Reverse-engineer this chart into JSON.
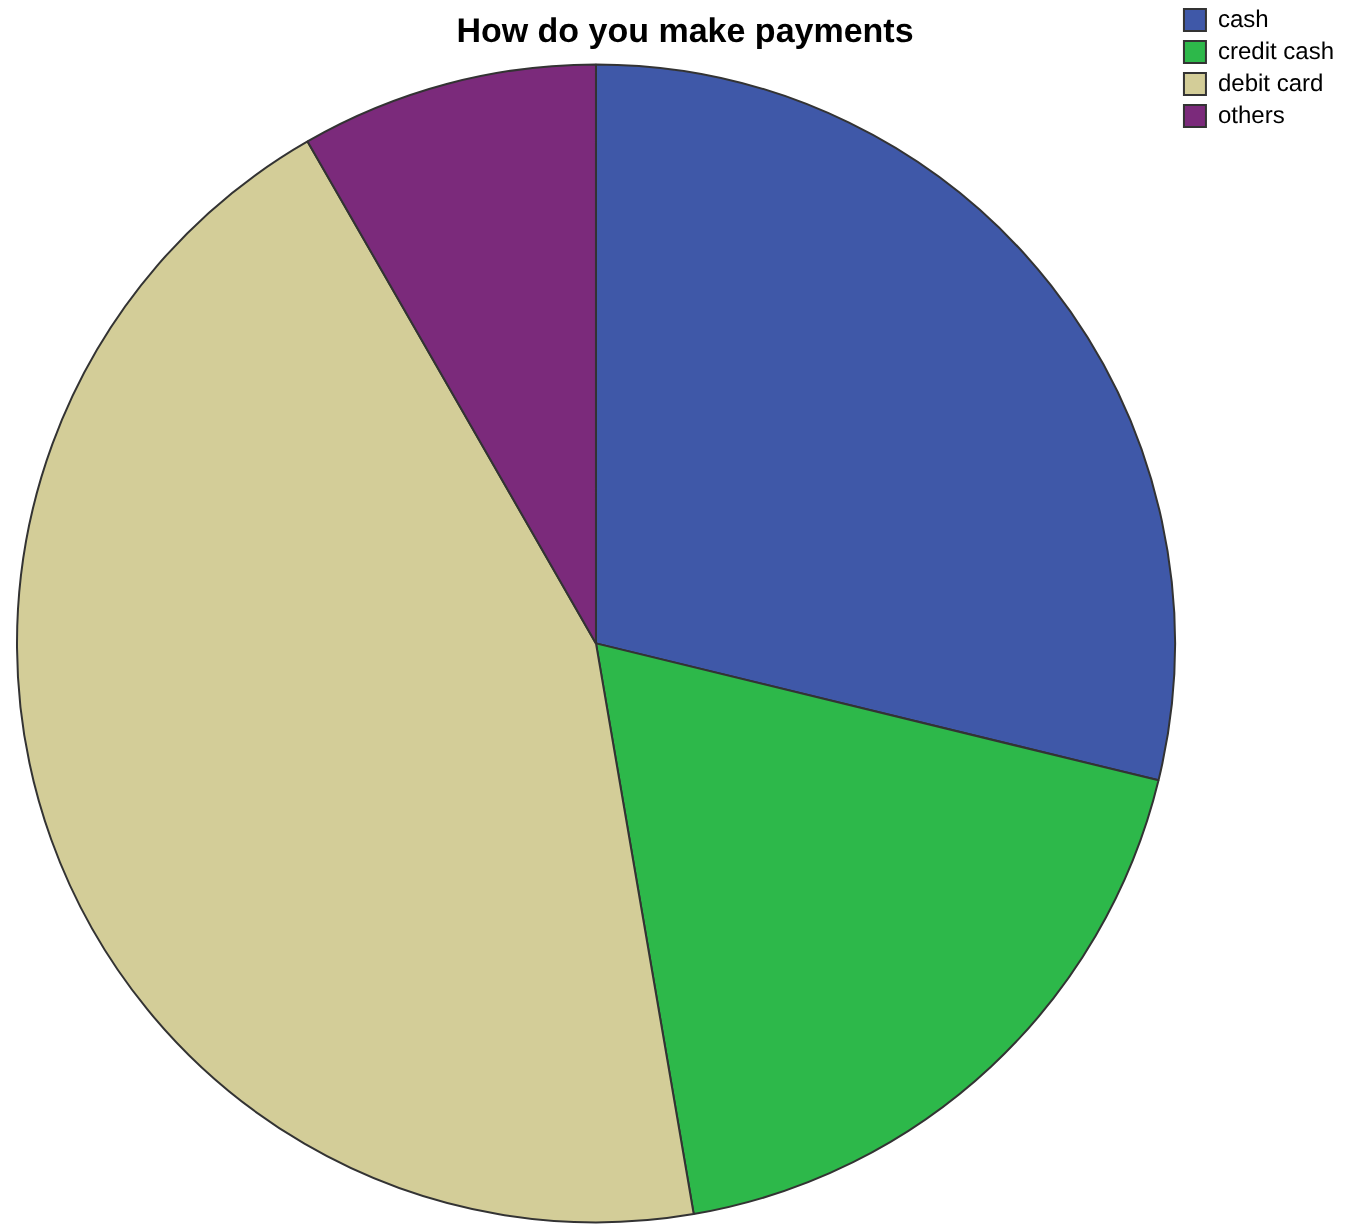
{
  "chart_data": {
    "type": "pie",
    "title": "How do you make payments",
    "categories": [
      "cash",
      "credit cash",
      "debit card",
      "others"
    ],
    "values": [
      28.8,
      18.5,
      44.4,
      8.3
    ],
    "colors": [
      "#3f58a8",
      "#2db84a",
      "#d3cd98",
      "#7b2a7b"
    ],
    "legend": "top right"
  }
}
